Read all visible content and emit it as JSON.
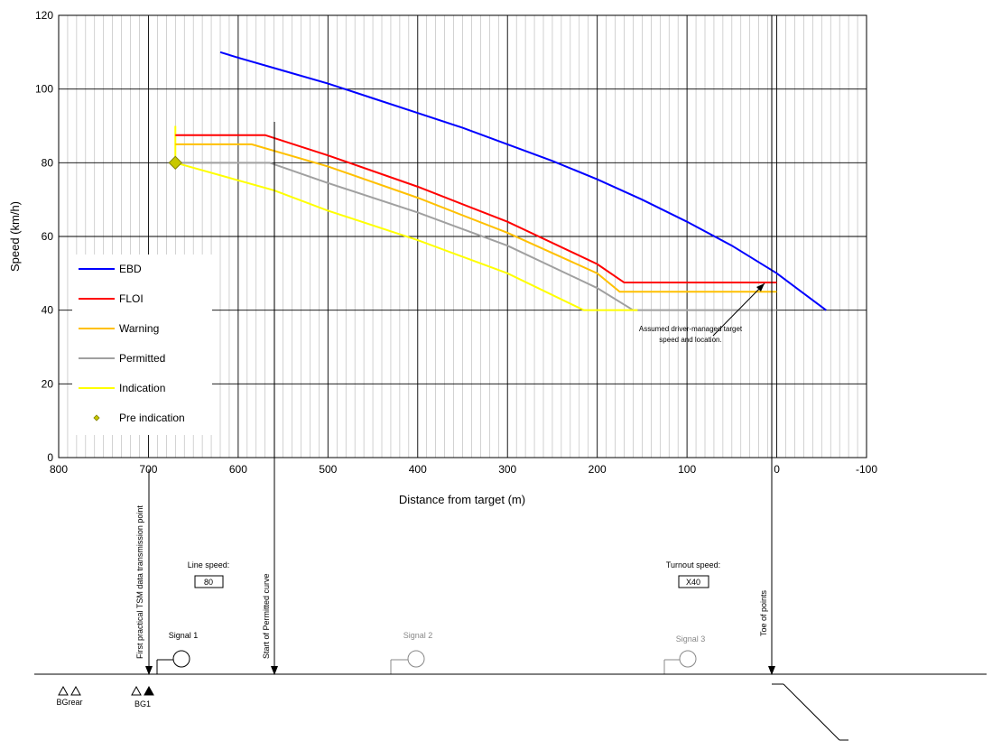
{
  "chart_data": {
    "type": "line",
    "xlabel": "Distance from target (m)",
    "ylabel": "Speed (km/h)",
    "xlim": [
      800,
      -100
    ],
    "ylim": [
      0,
      120
    ],
    "x_ticks": [
      "800",
      "700",
      "600",
      "500",
      "400",
      "300",
      "200",
      "100",
      "0",
      "-100"
    ],
    "y_ticks": [
      "0",
      "20",
      "40",
      "60",
      "80",
      "100",
      "120"
    ],
    "grid": true,
    "legend_position": "left",
    "series": [
      {
        "name": "EBD",
        "color": "#0000ff",
        "x": [
          620,
          600,
          550,
          500,
          450,
          400,
          350,
          300,
          250,
          200,
          150,
          100,
          50,
          0,
          -55
        ],
        "y": [
          110,
          108.5,
          105,
          101.5,
          97.5,
          93.5,
          89.5,
          85,
          80.5,
          75.5,
          70,
          64,
          57.5,
          50,
          40
        ]
      },
      {
        "name": "FLOI",
        "color": "#ff0000",
        "x": [
          670,
          570,
          500,
          400,
          300,
          200,
          170,
          0
        ],
        "y": [
          87.5,
          87.5,
          82,
          73.5,
          64,
          52.5,
          47.5,
          47.5
        ]
      },
      {
        "name": "Warning",
        "color": "#ffc000",
        "x": [
          670,
          585,
          500,
          400,
          300,
          200,
          175,
          0
        ],
        "y": [
          85,
          85,
          79,
          70.5,
          61,
          50,
          45,
          45
        ]
      },
      {
        "name": "Permitted",
        "color": "#a0a0a0",
        "x": [
          670,
          565,
          500,
          400,
          300,
          200,
          160,
          0
        ],
        "y": [
          80,
          80,
          74.5,
          66.5,
          57.5,
          46,
          40,
          40
        ]
      },
      {
        "name": "Indication",
        "color": "#ffff00",
        "x": [
          670,
          560,
          500,
          400,
          300,
          215,
          155
        ],
        "y": [
          80,
          72.5,
          67,
          59,
          50,
          40,
          40
        ]
      },
      {
        "name": "Pre indication",
        "color": "#c8c800",
        "marker": "diamond",
        "x": [
          670
        ],
        "y": [
          80
        ]
      }
    ],
    "annotations": [
      {
        "text": "Assumed driver-managed target speed and location.",
        "x": 0,
        "y": 47.5
      }
    ]
  },
  "legend": [
    {
      "label": "EBD",
      "color": "#0000ff"
    },
    {
      "label": "FLOI",
      "color": "#ff0000"
    },
    {
      "label": "Warning",
      "color": "#ffc000"
    },
    {
      "label": "Permitted",
      "color": "#a0a0a0"
    },
    {
      "label": "Indication",
      "color": "#ffff00"
    },
    {
      "label": "Pre indication",
      "color": "#c8c800",
      "marker": "diamond"
    }
  ],
  "diagram": {
    "tsm_label": "First practical TSM data transmission point",
    "permitted_label": "Start of Permitted curve",
    "toe_label": "Toe of points",
    "line_speed_label": "Line speed:",
    "line_speed_value": "80",
    "turnout_speed_label": "Turnout speed:",
    "turnout_speed_value": "X40",
    "signal1": "Signal 1",
    "signal2": "Signal 2",
    "signal3": "Signal 3",
    "bgrear": "BGrear",
    "bg1": "BG1"
  }
}
